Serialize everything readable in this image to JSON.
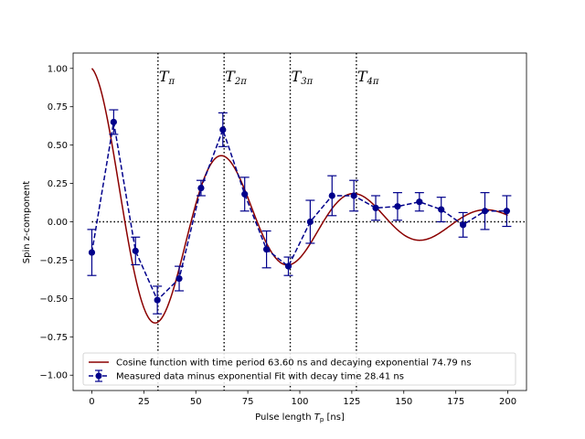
{
  "chart_data": {
    "type": "line",
    "xlabel": "Pulse length",
    "xlabel_var": "T",
    "xlabel_var_sub": "p",
    "xlabel_unit": "[ns]",
    "ylabel": "Spin z-component",
    "xlim": [
      -9,
      209
    ],
    "ylim": [
      -1.1,
      1.1
    ],
    "xticks": [
      0,
      25,
      50,
      75,
      100,
      125,
      150,
      175,
      200
    ],
    "xtick_labels": [
      "0",
      "25",
      "50",
      "75",
      "100",
      "125",
      "150",
      "175",
      "200"
    ],
    "yticks": [
      1.0,
      0.75,
      0.5,
      0.25,
      0.0,
      -0.25,
      -0.5,
      -0.75,
      -1.0
    ],
    "ytick_labels": [
      "1.00",
      "0.75",
      "0.50",
      "0.25",
      "0.00",
      "−0.25",
      "−0.50",
      "−0.75",
      "−1.00"
    ],
    "fit": {
      "name": "Cosine function with time period 63.60 ns and decaying exponential 74.79 ns",
      "period": 63.6,
      "decay": 74.79,
      "x_range": [
        0,
        200
      ],
      "color": "#8b0000"
    },
    "series": [
      {
        "name": "Measured data minus exponential Fit with decay time 28.41 ns",
        "color": "#00008b",
        "x": [
          0,
          10.5,
          21,
          31.5,
          42,
          52.5,
          63,
          73.5,
          84,
          94.5,
          105,
          115.5,
          126,
          136.5,
          147,
          157.5,
          168,
          178.5,
          189,
          199.5
        ],
        "y": [
          -0.2,
          0.65,
          -0.19,
          -0.51,
          -0.37,
          0.22,
          0.6,
          0.18,
          -0.18,
          -0.29,
          0.0,
          0.17,
          0.17,
          0.09,
          0.1,
          0.13,
          0.08,
          -0.02,
          0.07,
          0.07
        ],
        "err": [
          0.15,
          0.08,
          0.09,
          0.09,
          0.08,
          0.05,
          0.11,
          0.11,
          0.12,
          0.06,
          0.14,
          0.13,
          0.1,
          0.08,
          0.09,
          0.06,
          0.08,
          0.08,
          0.12,
          0.1
        ]
      }
    ],
    "vlines": [
      {
        "x": 31.8,
        "label": "T",
        "sub": "π"
      },
      {
        "x": 63.6,
        "label": "T",
        "sub": "2π"
      },
      {
        "x": 95.4,
        "label": "T",
        "sub": "3π"
      },
      {
        "x": 127.2,
        "label": "T",
        "sub": "4π"
      }
    ],
    "hline": {
      "y": 0,
      "x_from": 0
    },
    "legend_position": "lower-left",
    "grid": false
  }
}
